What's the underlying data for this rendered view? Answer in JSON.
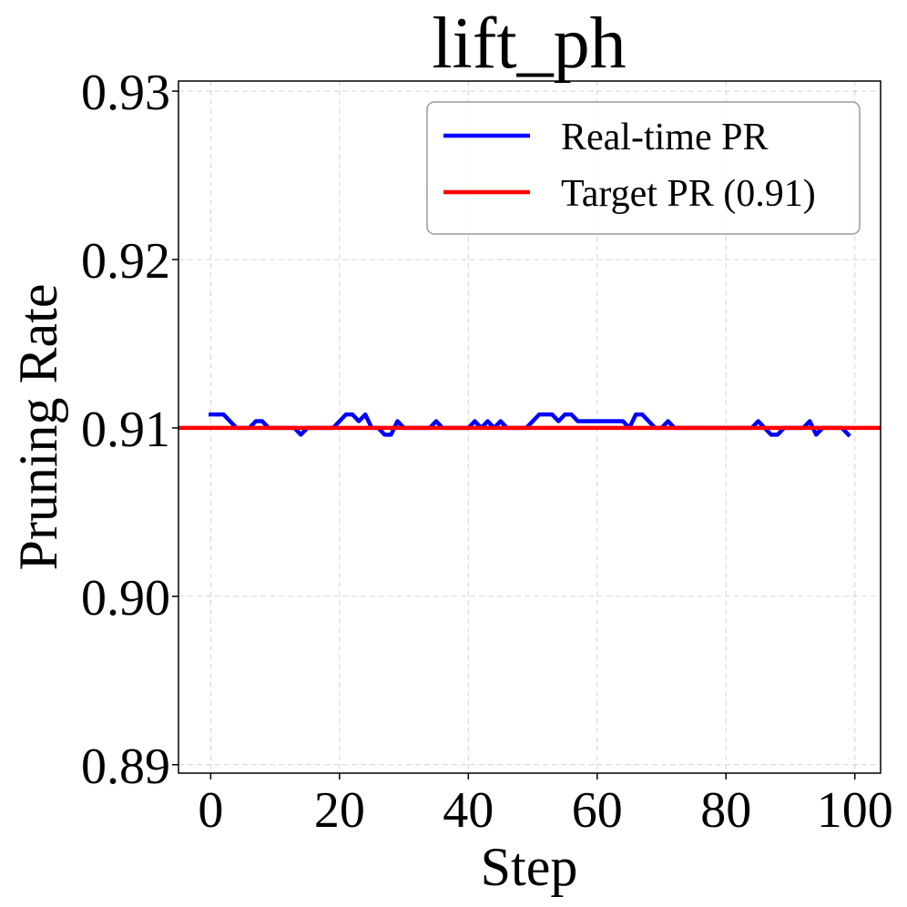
{
  "chart_data": {
    "type": "line",
    "title": "lift_ph",
    "xlabel": "Step",
    "ylabel": "Pruning Rate",
    "xlim": [
      -5,
      104
    ],
    "ylim": [
      0.8895,
      0.9306
    ],
    "xticks": [
      0,
      20,
      40,
      60,
      80,
      100
    ],
    "xtick_labels": [
      "0",
      "20",
      "40",
      "60",
      "80",
      "100"
    ],
    "yticks": [
      0.89,
      0.9,
      0.91,
      0.92,
      0.93
    ],
    "ytick_labels": [
      "0.89",
      "0.90",
      "0.91",
      "0.92",
      "0.93"
    ],
    "grid": true,
    "legend_position": "top-right",
    "series": [
      {
        "name": "Real-time PR",
        "color": "#0000ff",
        "x": [
          0,
          1,
          2,
          3,
          4,
          5,
          6,
          7,
          8,
          9,
          10,
          11,
          12,
          13,
          14,
          15,
          16,
          17,
          18,
          19,
          20,
          21,
          22,
          23,
          24,
          25,
          26,
          27,
          28,
          29,
          30,
          31,
          32,
          33,
          34,
          35,
          36,
          37,
          38,
          39,
          40,
          41,
          42,
          43,
          44,
          45,
          46,
          47,
          48,
          49,
          50,
          51,
          52,
          53,
          54,
          55,
          56,
          57,
          58,
          59,
          60,
          61,
          62,
          63,
          64,
          65,
          66,
          67,
          68,
          69,
          70,
          71,
          72,
          73,
          74,
          75,
          76,
          77,
          78,
          79,
          80,
          81,
          82,
          83,
          84,
          85,
          86,
          87,
          88,
          89,
          90,
          91,
          92,
          93,
          94,
          95,
          96,
          97,
          98,
          99
        ],
        "y": [
          0.9108,
          0.9108,
          0.9108,
          0.9104,
          0.91,
          0.91,
          0.91,
          0.9104,
          0.9104,
          0.91,
          0.91,
          0.91,
          0.91,
          0.91,
          0.9096,
          0.91,
          0.91,
          0.91,
          0.91,
          0.91,
          0.9104,
          0.9108,
          0.9108,
          0.9104,
          0.9108,
          0.91,
          0.91,
          0.9096,
          0.9096,
          0.9104,
          0.91,
          0.91,
          0.91,
          0.91,
          0.91,
          0.9104,
          0.91,
          0.91,
          0.91,
          0.91,
          0.91,
          0.9104,
          0.91,
          0.9104,
          0.91,
          0.9104,
          0.91,
          0.91,
          0.91,
          0.91,
          0.9104,
          0.9108,
          0.9108,
          0.9108,
          0.9104,
          0.9108,
          0.9108,
          0.9104,
          0.9104,
          0.9104,
          0.9104,
          0.9104,
          0.9104,
          0.9104,
          0.9104,
          0.91,
          0.9108,
          0.9108,
          0.9104,
          0.91,
          0.91,
          0.9104,
          0.91,
          0.91,
          0.91,
          0.91,
          0.91,
          0.91,
          0.91,
          0.91,
          0.91,
          0.91,
          0.91,
          0.91,
          0.91,
          0.9104,
          0.91,
          0.9096,
          0.9096,
          0.91,
          0.91,
          0.91,
          0.91,
          0.9104,
          0.9096,
          0.91,
          0.91,
          0.91,
          0.91,
          0.9096
        ]
      },
      {
        "name": "Target PR (0.91)",
        "color": "#ff0000",
        "hline": 0.91
      }
    ]
  }
}
